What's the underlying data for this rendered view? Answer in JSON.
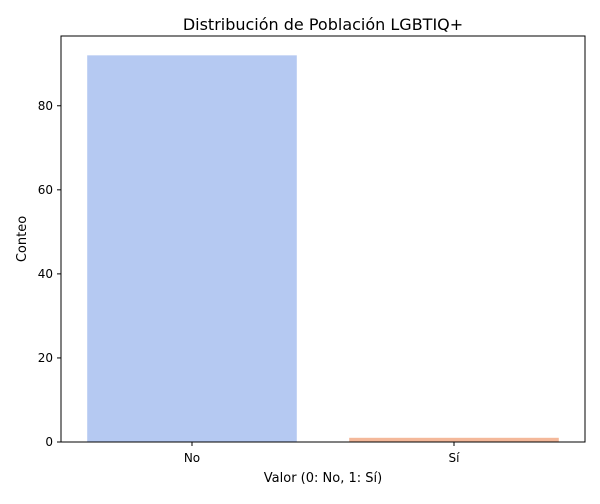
{
  "chart_data": {
    "type": "bar",
    "title": "Distribución de Población LGBTIQ+",
    "xlabel": "Valor (0: No, 1: Sí)",
    "ylabel": "Conteo",
    "categories": [
      "No",
      "Sí"
    ],
    "values": [
      92,
      1
    ],
    "bar_colors": [
      "#b5c9f2",
      "#f4b89a"
    ],
    "ylim": [
      0,
      96.6
    ],
    "yticks": [
      0,
      20,
      40,
      60,
      80
    ],
    "grid": false,
    "legend": "none"
  }
}
